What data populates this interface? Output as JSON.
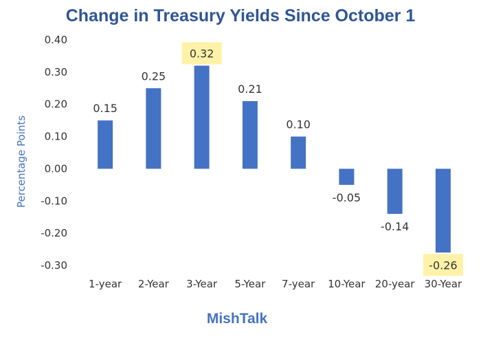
{
  "chart_data": {
    "type": "bar",
    "title": "Change in Treasury Yields Since October 1",
    "ylabel": "Percentage Points",
    "xlabel": "",
    "footer": "MishTalk",
    "categories": [
      "1-year",
      "2-Year",
      "3-Year",
      "5-Year",
      "7-year",
      "10-Year",
      "20-year",
      "30-Year"
    ],
    "values": [
      0.15,
      0.25,
      0.32,
      0.21,
      0.1,
      -0.05,
      -0.14,
      -0.26
    ],
    "data_labels": [
      "0.15",
      "0.25",
      "0.32",
      "0.21",
      "0.10",
      "-0.05",
      "-0.14",
      "-0.26"
    ],
    "highlighted": [
      "3-Year",
      "30-Year"
    ],
    "yticks": [
      0.4,
      0.3,
      0.2,
      0.1,
      0.0,
      -0.1,
      -0.2,
      -0.3
    ],
    "ytick_labels": [
      "0.40",
      "0.30",
      "0.20",
      "0.10",
      "0.00",
      "-0.10",
      "-0.20",
      "-0.30"
    ],
    "ylim": [
      -0.3,
      0.4
    ],
    "grid": false,
    "legend": "none",
    "colors": {
      "bar": "#4472C4",
      "title": "#2F5597",
      "axis_label": "#4472C4",
      "highlight": "#FFF2A8",
      "footer": "#4472C4"
    }
  }
}
